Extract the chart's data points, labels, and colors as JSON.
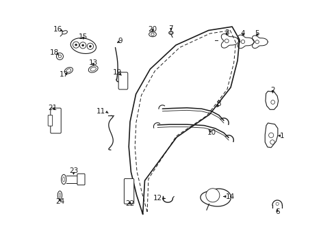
{
  "bg_color": "#ffffff",
  "lc": "#1a1a1a",
  "figsize": [
    4.89,
    3.6
  ],
  "dpi": 100,
  "door_outer": {
    "x": [
      0.395,
      0.375,
      0.355,
      0.35,
      0.355,
      0.38,
      0.435,
      0.53,
      0.66,
      0.755,
      0.79,
      0.785,
      0.76,
      0.68,
      0.55,
      0.42,
      0.395
    ],
    "y": [
      0.13,
      0.2,
      0.29,
      0.39,
      0.49,
      0.6,
      0.7,
      0.8,
      0.87,
      0.89,
      0.84,
      0.76,
      0.66,
      0.55,
      0.45,
      0.28,
      0.13
    ]
  },
  "door_inner": {
    "x": [
      0.415,
      0.4,
      0.382,
      0.378,
      0.383,
      0.405,
      0.455,
      0.545,
      0.665,
      0.75,
      0.775,
      0.77,
      0.745,
      0.67,
      0.55,
      0.435,
      0.415
    ],
    "y": [
      0.14,
      0.205,
      0.295,
      0.393,
      0.49,
      0.598,
      0.695,
      0.792,
      0.858,
      0.877,
      0.83,
      0.753,
      0.652,
      0.547,
      0.452,
      0.285,
      0.14
    ]
  }
}
